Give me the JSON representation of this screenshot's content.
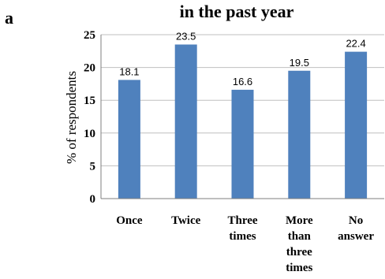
{
  "panel_label": "a",
  "chart_data": {
    "type": "bar",
    "title": "in the past year",
    "ylabel": "% of respondents",
    "xlabel": "",
    "categories": [
      [
        "Once"
      ],
      [
        "Twice"
      ],
      [
        "Three",
        "times"
      ],
      [
        "More",
        "than",
        "three",
        "times"
      ],
      [
        "No",
        "answer"
      ]
    ],
    "values": [
      18.1,
      23.5,
      16.6,
      19.5,
      22.4
    ],
    "value_labels": [
      "18.1",
      "23.5",
      "16.6",
      "19.5",
      "22.4"
    ],
    "ylim": [
      0,
      25
    ],
    "yticks": [
      "0",
      "5",
      "10",
      "15",
      "20",
      "25"
    ],
    "grid": true,
    "legend": "none",
    "bar_color": "#4f81bd"
  }
}
